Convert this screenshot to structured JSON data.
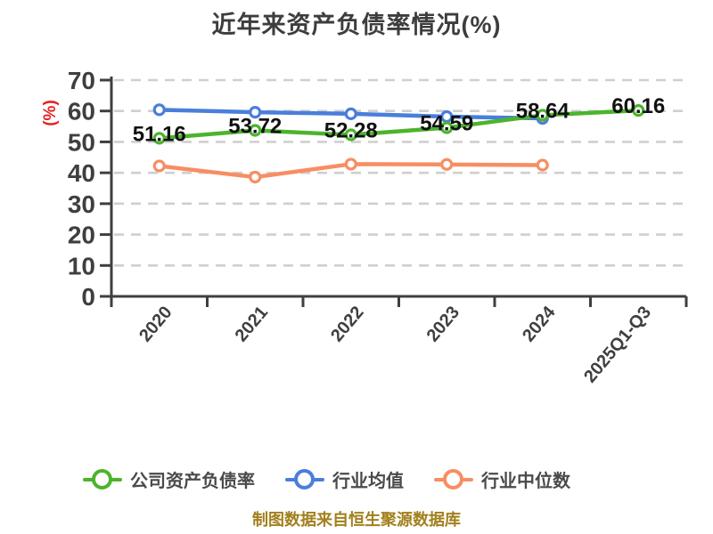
{
  "title": "近年来资产负债率情况(%)",
  "footer": "制图数据来自恒生聚源数据库",
  "colors": {
    "title_text": "#3d3d3d",
    "axis": "#3f3f3f",
    "tick_label": "#3f3f3f",
    "grid": "#cfcfcf",
    "data_label": "#111111",
    "legend_text": "#4a4a4a",
    "y_unit_red": "#e62222",
    "footer_gold": "#a2801d",
    "company_green": "#4cb42c",
    "industry_avg_blue": "#4a7edb",
    "industry_median_orange": "#f78e63"
  },
  "chart_data": {
    "type": "line",
    "title": "近年来资产负债率情况(%)",
    "ylabel": "(%)",
    "xlabel": "",
    "categories": [
      "2020",
      "2021",
      "2022",
      "2023",
      "2024",
      "2025Q1-Q3"
    ],
    "ylim": [
      0,
      70
    ],
    "ytick_interval": 10,
    "yticks": [
      0,
      10,
      20,
      30,
      40,
      50,
      60,
      70
    ],
    "grid": "horizontal-dashed",
    "legend_position": "bottom",
    "series": [
      {
        "key": "company-debt-ratio",
        "name": "公司资产负债率",
        "color": "#4cb42c",
        "show_labels": true,
        "values": [
          51.16,
          53.72,
          52.28,
          54.59,
          58.64,
          60.16
        ]
      },
      {
        "key": "industry-average",
        "name": "行业均值",
        "color": "#4a7edb",
        "show_labels": false,
        "values": [
          60.4,
          59.6,
          59.1,
          58.2,
          57.6
        ]
      },
      {
        "key": "industry-median",
        "name": "行业中位数",
        "color": "#f78e63",
        "show_labels": false,
        "values": [
          42.2,
          38.6,
          42.8,
          42.7,
          42.5
        ]
      }
    ]
  }
}
